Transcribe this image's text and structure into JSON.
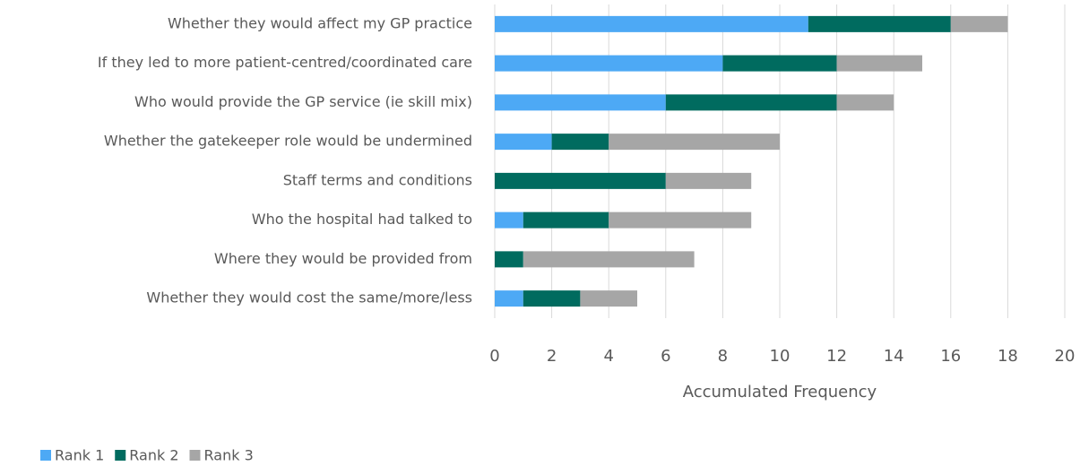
{
  "chart_data": {
    "type": "bar",
    "orientation": "horizontal",
    "stacked": true,
    "categories": [
      "Whether they would affect my GP practice",
      "If they led to more patient-centred/coordinated care",
      "Who would provide the GP service (ie skill mix)",
      "Whether the gatekeeper role would be undermined",
      "Staff terms and conditions",
      "Who the hospital had talked to",
      "Where they would be provided from",
      "Whether they would cost the same/more/less"
    ],
    "series": [
      {
        "name": "Rank 1",
        "color": "#4da9f5",
        "values": [
          11,
          8,
          6,
          2,
          0,
          1,
          0,
          1
        ]
      },
      {
        "name": "Rank 2",
        "color": "#006b5f",
        "values": [
          5,
          4,
          6,
          2,
          6,
          3,
          1,
          2
        ]
      },
      {
        "name": "Rank 3",
        "color": "#a6a6a6",
        "values": [
          2,
          3,
          2,
          6,
          3,
          5,
          6,
          2
        ]
      }
    ],
    "xlabel": "Accumulated Frequency",
    "xlim": [
      0,
      20
    ],
    "xticks": [
      0,
      2,
      4,
      6,
      8,
      10,
      12,
      14,
      16,
      18,
      20
    ],
    "grid": true,
    "legend": "bottom-left"
  }
}
